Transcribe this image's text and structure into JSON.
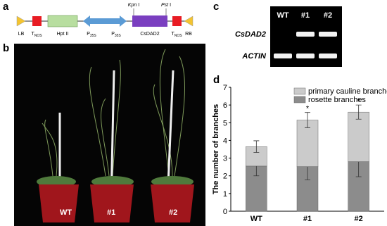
{
  "panels": {
    "a": {
      "label": "a",
      "elements": [
        {
          "main": "LB"
        },
        {
          "main": "T",
          "sub": "NOS"
        },
        {
          "main": "Hpt II"
        },
        {
          "main": "P",
          "sub": "35S"
        },
        {
          "main": "P",
          "sub": "35S"
        },
        {
          "main": "CsDAD2"
        },
        {
          "main": "T",
          "sub": "NOS"
        },
        {
          "main": "RB"
        }
      ],
      "sites": [
        {
          "name": "Kpn",
          "unit": "I"
        },
        {
          "name": "Pst",
          "unit": "I"
        }
      ]
    },
    "b": {
      "label": "b",
      "samples": [
        "WT",
        "#1",
        "#2"
      ]
    },
    "c": {
      "label": "c",
      "lanes": [
        "WT",
        "#1",
        "#2"
      ],
      "genes": [
        "CsDAD2",
        "ACTIN"
      ]
    },
    "d": {
      "label": "d"
    }
  },
  "chart_data": {
    "type": "bar",
    "stacked": true,
    "ylabel": "The number of branches",
    "categories": [
      "WT",
      "#1",
      "#2"
    ],
    "series": [
      {
        "name": "rosette branches",
        "color": "#8c8c8c",
        "values": [
          2.55,
          2.52,
          2.8
        ],
        "errors": [
          0.55,
          0.75,
          0.85
        ]
      },
      {
        "name": "primary cauline branches",
        "color": "#cbcbcb",
        "values": [
          1.1,
          2.63,
          2.8
        ],
        "errors": [
          0.33,
          0.43,
          0.4
        ]
      }
    ],
    "significance": [
      null,
      "*",
      "*"
    ],
    "ylim": [
      0,
      7
    ],
    "yticks": [
      0,
      1,
      2,
      3,
      4,
      5,
      6,
      7
    ],
    "legend": "upper right"
  }
}
